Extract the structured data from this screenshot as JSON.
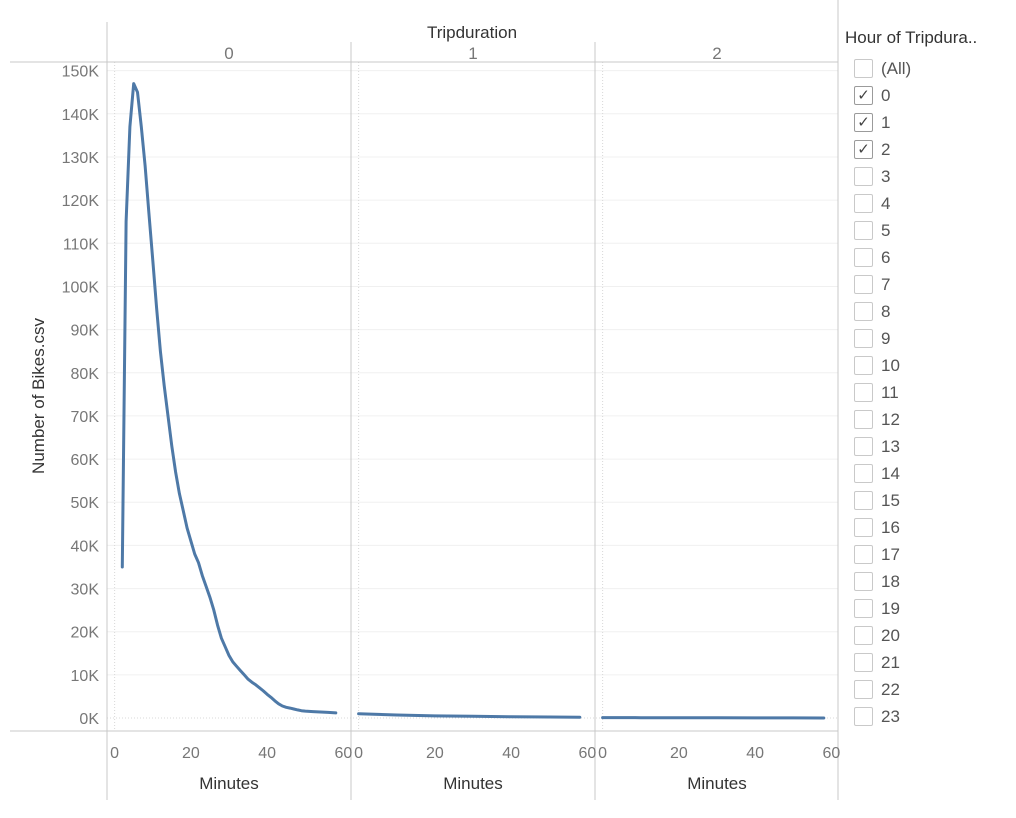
{
  "chart_data": {
    "type": "line",
    "title": "",
    "column_header": "Tripduration",
    "panels": [
      {
        "label": "0",
        "x": [
          2,
          3,
          4,
          5,
          6,
          7,
          8,
          9,
          10,
          11,
          12,
          13,
          14,
          15,
          16,
          17,
          18,
          19,
          20,
          21,
          22,
          23,
          24,
          25,
          26,
          27,
          28,
          29,
          30,
          31,
          32,
          33,
          34,
          35,
          36,
          37,
          38,
          39,
          40,
          41,
          42,
          43,
          44,
          45,
          46,
          47,
          48,
          49,
          50,
          52,
          54,
          56,
          58
        ],
        "values": [
          35000,
          115000,
          137000,
          147000,
          145000,
          137000,
          128000,
          117000,
          106000,
          95000,
          85000,
          77000,
          70000,
          63000,
          57000,
          52000,
          48000,
          44000,
          41000,
          38000,
          36000,
          33000,
          30500,
          28000,
          25000,
          21500,
          18500,
          16500,
          14500,
          13000,
          12000,
          11000,
          10000,
          9000,
          8300,
          7700,
          7000,
          6300,
          5500,
          4800,
          4000,
          3300,
          2800,
          2500,
          2300,
          2100,
          1900,
          1700,
          1600,
          1500,
          1400,
          1300,
          1200
        ]
      },
      {
        "label": "1",
        "x": [
          0,
          10,
          20,
          30,
          40,
          50,
          58
        ],
        "values": [
          1000,
          700,
          500,
          400,
          300,
          250,
          200
        ]
      },
      {
        "label": "2",
        "x": [
          0,
          10,
          20,
          30,
          40,
          50,
          58
        ],
        "values": [
          100,
          80,
          60,
          50,
          40,
          30,
          20
        ]
      }
    ],
    "xlabel": "Minutes",
    "ylabel": "Number of Bikes.csv",
    "xlim": [
      -2,
      62
    ],
    "ylim": [
      -3000,
      152000
    ],
    "x_ticks": [
      "0",
      "20",
      "40",
      "60"
    ],
    "x_tick_values": [
      0,
      20,
      40,
      60
    ],
    "y_ticks": [
      "0K",
      "10K",
      "20K",
      "30K",
      "40K",
      "50K",
      "60K",
      "70K",
      "80K",
      "90K",
      "100K",
      "110K",
      "120K",
      "130K",
      "140K",
      "150K"
    ],
    "y_tick_values": [
      0,
      10000,
      20000,
      30000,
      40000,
      50000,
      60000,
      70000,
      80000,
      90000,
      100000,
      110000,
      120000,
      130000,
      140000,
      150000
    ],
    "grid": true,
    "line_color": "#4e79a7"
  },
  "filter": {
    "title": "Hour of Tripdura..",
    "items": [
      {
        "label": "(All)",
        "checked": false
      },
      {
        "label": "0",
        "checked": true
      },
      {
        "label": "1",
        "checked": true
      },
      {
        "label": "2",
        "checked": true
      },
      {
        "label": "3",
        "checked": false
      },
      {
        "label": "4",
        "checked": false
      },
      {
        "label": "5",
        "checked": false
      },
      {
        "label": "6",
        "checked": false
      },
      {
        "label": "7",
        "checked": false
      },
      {
        "label": "8",
        "checked": false
      },
      {
        "label": "9",
        "checked": false
      },
      {
        "label": "10",
        "checked": false
      },
      {
        "label": "11",
        "checked": false
      },
      {
        "label": "12",
        "checked": false
      },
      {
        "label": "13",
        "checked": false
      },
      {
        "label": "14",
        "checked": false
      },
      {
        "label": "15",
        "checked": false
      },
      {
        "label": "16",
        "checked": false
      },
      {
        "label": "17",
        "checked": false
      },
      {
        "label": "18",
        "checked": false
      },
      {
        "label": "19",
        "checked": false
      },
      {
        "label": "20",
        "checked": false
      },
      {
        "label": "21",
        "checked": false
      },
      {
        "label": "22",
        "checked": false
      },
      {
        "label": "23",
        "checked": false
      }
    ],
    "check_glyph": "✓"
  }
}
